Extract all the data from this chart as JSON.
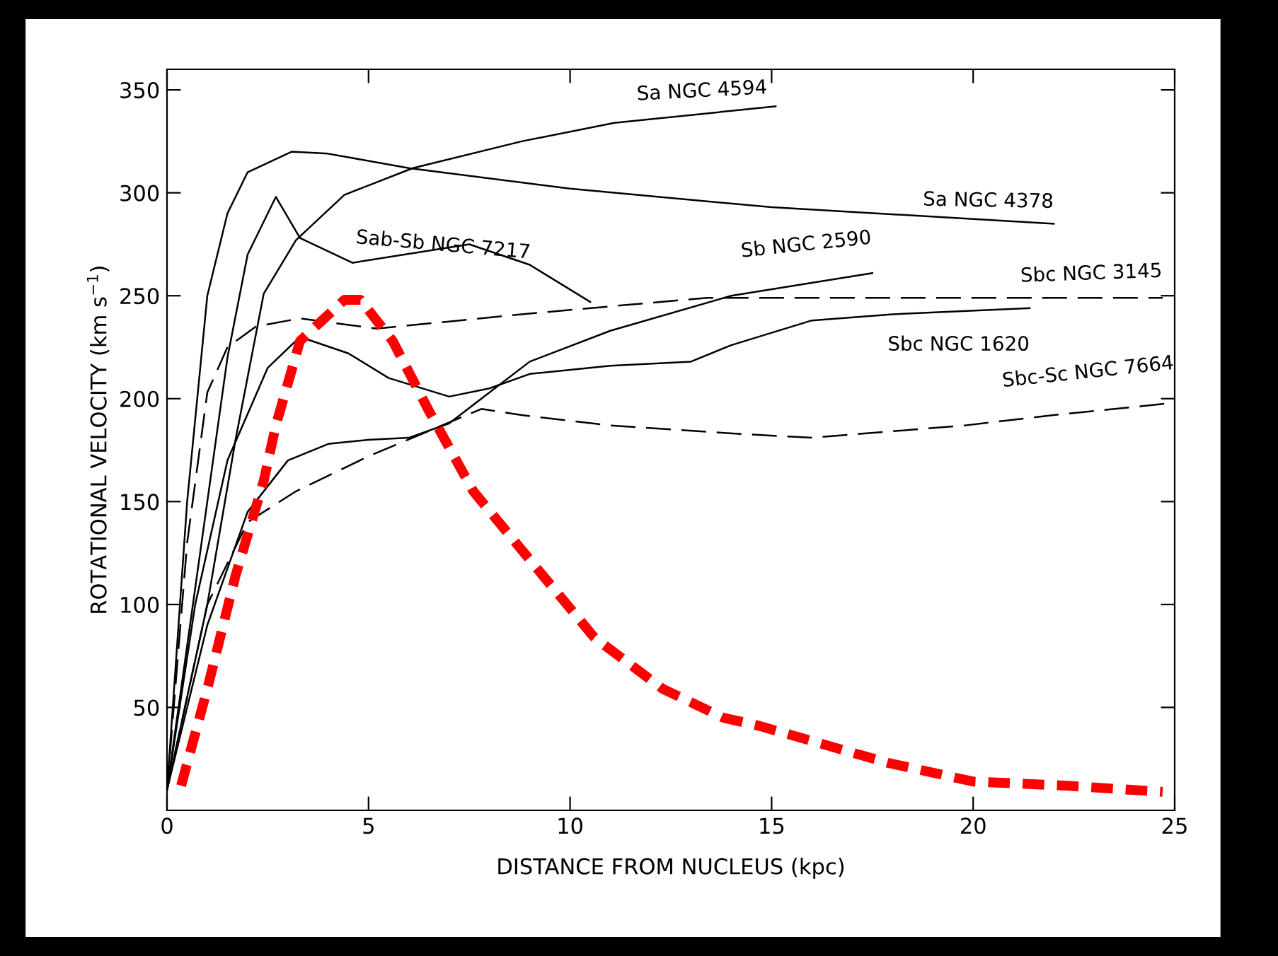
{
  "chart_data": {
    "type": "line",
    "xlabel": "DISTANCE FROM NUCLEUS (kpc)",
    "ylabel": "ROTATIONAL VELOCITY (km s$^{−1}$)",
    "xlim": [
      0,
      25
    ],
    "ylim": [
      0,
      360
    ],
    "xticks": [
      0,
      5,
      10,
      15,
      20,
      25
    ],
    "yticks": [
      50,
      100,
      150,
      200,
      250,
      300,
      350
    ],
    "grid": false,
    "marker": "none",
    "series": [
      {
        "name": "Sa NGC 4594",
        "color": "#000000",
        "line_style": "solid",
        "x": [
          0,
          1,
          1.7,
          2.4,
          3.2,
          4.4,
          6.1,
          8.8,
          11.1,
          15.1
        ],
        "values": [
          10,
          100,
          180,
          251,
          277,
          299,
          312,
          325,
          334,
          342
        ]
      },
      {
        "name": "Sa NGC 4378",
        "color": "#000000",
        "line_style": "solid",
        "x": [
          0,
          0.5,
          1,
          1.5,
          2,
          3.1,
          4,
          6,
          10,
          15,
          22
        ],
        "values": [
          10,
          150,
          250,
          290,
          310,
          320,
          319,
          312,
          302,
          293,
          285
        ]
      },
      {
        "name": "Sab-Sb NGC 7217",
        "color": "#000000",
        "line_style": "solid",
        "x": [
          0,
          1,
          1.5,
          2,
          2.7,
          3.3,
          4.6,
          7.5,
          9,
          10.5
        ],
        "values": [
          10,
          150,
          220,
          270,
          298,
          278,
          266,
          275,
          265,
          247
        ]
      },
      {
        "name": "Sb NGC 2590",
        "color": "#000000",
        "line_style": "solid",
        "x": [
          0,
          1,
          2,
          3,
          4,
          5,
          6,
          7,
          7.8,
          9,
          11,
          14,
          17.5
        ],
        "values": [
          10,
          90,
          145,
          170,
          178,
          180,
          181,
          188,
          200,
          218,
          233,
          250,
          261
        ]
      },
      {
        "name": "Sbc NGC 3145",
        "color": "#000000",
        "line_style": "dashed",
        "x": [
          0,
          0.5,
          1,
          1.5,
          2.2,
          3.3,
          5.2,
          8.8,
          13.4,
          20.9,
          24.7
        ],
        "values": [
          10,
          130,
          203,
          225,
          235,
          239,
          234,
          241,
          249,
          249,
          249
        ]
      },
      {
        "name": "Sbc NGC 1620",
        "color": "#000000",
        "line_style": "solid",
        "x": [
          0,
          0.7,
          1.5,
          2.5,
          3.3,
          4.5,
          5.5,
          7,
          8,
          9,
          11,
          13,
          14,
          16,
          18,
          21.4
        ],
        "values": [
          10,
          100,
          170,
          215,
          230,
          222,
          210,
          201,
          205,
          212,
          216,
          218,
          226,
          238,
          241,
          244
        ]
      },
      {
        "name": "Sbc-Sc NGC 7664",
        "color": "#000000",
        "line_style": "dashed",
        "x": [
          0,
          1,
          2,
          3.2,
          5,
          7.8,
          8.8,
          11,
          14.1,
          16,
          19.8,
          22,
          25
        ],
        "values": [
          10,
          100,
          140,
          155,
          172,
          195,
          192,
          187,
          183,
          181,
          187,
          192,
          198
        ]
      },
      {
        "color": "#ff0000",
        "line_style": "dashed",
        "x": [
          0.35,
          1,
          1.7,
          2.4,
          2.7,
          3.3,
          4.4,
          4.8,
          5.6,
          6.5,
          7.6,
          9.2,
          10.6,
          12.3,
          13.8,
          14.7,
          17.9,
          20,
          22.3,
          24.7
        ],
        "values": [
          12,
          59,
          114,
          160,
          187,
          228,
          248,
          248,
          228,
          194,
          155,
          117,
          84,
          59,
          45,
          41,
          23,
          14,
          12,
          9
        ]
      }
    ]
  }
}
